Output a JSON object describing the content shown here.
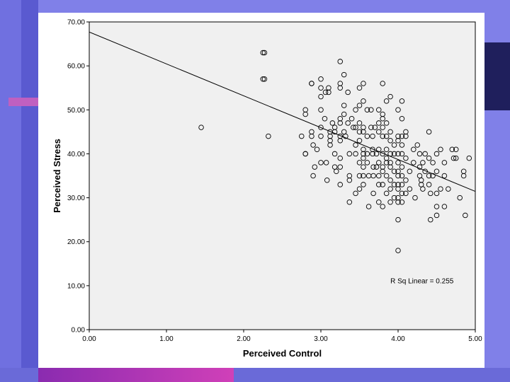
{
  "slide": {
    "colors": {
      "background": "#8080e8",
      "accent_pink": "#d040b8",
      "navy": "#1f1f5c",
      "plot_area": "#f0f0f0"
    }
  },
  "chart_data": {
    "type": "scatter",
    "title": "",
    "xlabel": "Perceived Control",
    "ylabel": "Perceived Stress",
    "xlim": [
      0,
      5
    ],
    "ylim": [
      0,
      70
    ],
    "xticks": [
      "0.00",
      "1.00",
      "2.00",
      "3.00",
      "4.00",
      "5.00"
    ],
    "yticks": [
      "0.00",
      "10.00",
      "20.00",
      "30.00",
      "40.00",
      "50.00",
      "60.00",
      "70.00"
    ],
    "grid": false,
    "marker": "open-circle",
    "fit_line": {
      "label": "R Sq Linear = 0.255",
      "intercept": 67.7,
      "slope": -7.25
    },
    "points": [
      [
        1.45,
        46
      ],
      [
        2.25,
        63
      ],
      [
        2.27,
        63
      ],
      [
        2.25,
        57
      ],
      [
        2.27,
        57
      ],
      [
        2.32,
        44
      ],
      [
        2.75,
        44
      ],
      [
        2.8,
        40
      ],
      [
        2.8,
        40
      ],
      [
        2.8,
        50
      ],
      [
        2.8,
        49
      ],
      [
        2.88,
        56
      ],
      [
        2.88,
        56
      ],
      [
        2.88,
        45
      ],
      [
        2.88,
        44
      ],
      [
        2.9,
        35
      ],
      [
        2.9,
        42
      ],
      [
        2.92,
        37
      ],
      [
        2.95,
        41
      ],
      [
        3.0,
        57
      ],
      [
        3.0,
        55
      ],
      [
        3.0,
        53
      ],
      [
        3.0,
        50
      ],
      [
        3.0,
        46
      ],
      [
        3.0,
        44
      ],
      [
        3.0,
        38
      ],
      [
        3.05,
        48
      ],
      [
        3.06,
        54
      ],
      [
        3.07,
        38
      ],
      [
        3.08,
        34
      ],
      [
        3.1,
        55
      ],
      [
        3.1,
        54
      ],
      [
        3.12,
        45
      ],
      [
        3.12,
        44
      ],
      [
        3.12,
        43
      ],
      [
        3.12,
        42
      ],
      [
        3.15,
        47
      ],
      [
        3.18,
        46
      ],
      [
        3.18,
        45
      ],
      [
        3.18,
        40
      ],
      [
        3.18,
        37
      ],
      [
        3.2,
        36
      ],
      [
        3.25,
        61
      ],
      [
        3.25,
        56
      ],
      [
        3.25,
        55
      ],
      [
        3.25,
        48
      ],
      [
        3.25,
        47
      ],
      [
        3.25,
        44
      ],
      [
        3.25,
        43
      ],
      [
        3.25,
        39
      ],
      [
        3.25,
        37
      ],
      [
        3.25,
        33
      ],
      [
        3.3,
        58
      ],
      [
        3.3,
        51
      ],
      [
        3.3,
        49
      ],
      [
        3.3,
        45
      ],
      [
        3.32,
        44
      ],
      [
        3.35,
        54
      ],
      [
        3.35,
        47
      ],
      [
        3.37,
        40
      ],
      [
        3.37,
        35
      ],
      [
        3.37,
        34
      ],
      [
        3.37,
        29
      ],
      [
        3.4,
        48
      ],
      [
        3.42,
        46
      ],
      [
        3.45,
        46
      ],
      [
        3.45,
        50
      ],
      [
        3.45,
        42
      ],
      [
        3.45,
        40
      ],
      [
        3.45,
        31
      ],
      [
        3.5,
        55
      ],
      [
        3.5,
        51
      ],
      [
        3.5,
        47
      ],
      [
        3.5,
        45
      ],
      [
        3.5,
        43
      ],
      [
        3.5,
        38
      ],
      [
        3.5,
        35
      ],
      [
        3.5,
        32
      ],
      [
        3.55,
        56
      ],
      [
        3.55,
        52
      ],
      [
        3.55,
        46
      ],
      [
        3.55,
        45
      ],
      [
        3.55,
        41
      ],
      [
        3.55,
        40
      ],
      [
        3.55,
        39
      ],
      [
        3.55,
        37
      ],
      [
        3.55,
        35
      ],
      [
        3.55,
        33
      ],
      [
        3.6,
        50
      ],
      [
        3.6,
        44
      ],
      [
        3.6,
        40
      ],
      [
        3.6,
        38
      ],
      [
        3.62,
        35
      ],
      [
        3.62,
        28
      ],
      [
        3.65,
        50
      ],
      [
        3.65,
        46
      ],
      [
        3.67,
        44
      ],
      [
        3.67,
        41
      ],
      [
        3.67,
        40
      ],
      [
        3.68,
        37
      ],
      [
        3.68,
        35
      ],
      [
        3.68,
        31
      ],
      [
        3.7,
        46
      ],
      [
        3.72,
        40
      ],
      [
        3.72,
        37
      ],
      [
        3.75,
        50
      ],
      [
        3.75,
        47
      ],
      [
        3.75,
        45
      ],
      [
        3.75,
        41
      ],
      [
        3.75,
        38
      ],
      [
        3.75,
        35
      ],
      [
        3.75,
        33
      ],
      [
        3.75,
        29
      ],
      [
        3.8,
        56
      ],
      [
        3.8,
        49
      ],
      [
        3.8,
        48
      ],
      [
        3.8,
        46
      ],
      [
        3.8,
        44
      ],
      [
        3.8,
        40
      ],
      [
        3.8,
        37
      ],
      [
        3.8,
        36
      ],
      [
        3.8,
        33
      ],
      [
        3.8,
        28
      ],
      [
        3.85,
        52
      ],
      [
        3.85,
        47
      ],
      [
        3.85,
        44
      ],
      [
        3.85,
        41
      ],
      [
        3.85,
        39
      ],
      [
        3.85,
        38
      ],
      [
        3.85,
        35
      ],
      [
        3.85,
        31
      ],
      [
        3.9,
        53
      ],
      [
        3.9,
        45
      ],
      [
        3.9,
        43
      ],
      [
        3.9,
        40
      ],
      [
        3.9,
        38
      ],
      [
        3.9,
        37
      ],
      [
        3.9,
        34
      ],
      [
        3.9,
        32
      ],
      [
        3.9,
        29
      ],
      [
        3.95,
        42
      ],
      [
        3.95,
        40
      ],
      [
        3.95,
        36
      ],
      [
        3.95,
        33
      ],
      [
        3.95,
        30
      ],
      [
        4.0,
        50
      ],
      [
        4.0,
        44
      ],
      [
        4.0,
        43
      ],
      [
        4.0,
        40
      ],
      [
        4.0,
        38
      ],
      [
        4.0,
        36
      ],
      [
        4.0,
        35
      ],
      [
        4.0,
        33
      ],
      [
        4.0,
        32
      ],
      [
        4.0,
        30
      ],
      [
        4.0,
        29
      ],
      [
        4.0,
        25
      ],
      [
        4.0,
        18
      ],
      [
        4.05,
        52
      ],
      [
        4.05,
        48
      ],
      [
        4.05,
        44
      ],
      [
        4.05,
        42
      ],
      [
        4.05,
        40
      ],
      [
        4.05,
        37
      ],
      [
        4.05,
        35
      ],
      [
        4.05,
        33
      ],
      [
        4.05,
        31
      ],
      [
        4.05,
        29
      ],
      [
        4.1,
        45
      ],
      [
        4.1,
        44
      ],
      [
        4.1,
        39
      ],
      [
        4.1,
        34
      ],
      [
        4.1,
        31
      ],
      [
        4.15,
        36
      ],
      [
        4.15,
        32
      ],
      [
        4.2,
        41
      ],
      [
        4.2,
        38
      ],
      [
        4.22,
        30
      ],
      [
        4.25,
        42
      ],
      [
        4.28,
        40
      ],
      [
        4.28,
        37
      ],
      [
        4.28,
        35
      ],
      [
        4.3,
        34
      ],
      [
        4.3,
        33
      ],
      [
        4.32,
        38
      ],
      [
        4.32,
        32
      ],
      [
        4.35,
        40
      ],
      [
        4.35,
        36
      ],
      [
        4.4,
        45
      ],
      [
        4.4,
        39
      ],
      [
        4.4,
        35
      ],
      [
        4.4,
        33
      ],
      [
        4.42,
        31
      ],
      [
        4.42,
        25
      ],
      [
        4.45,
        38
      ],
      [
        4.45,
        35
      ],
      [
        4.5,
        40
      ],
      [
        4.5,
        36
      ],
      [
        4.5,
        31
      ],
      [
        4.5,
        28
      ],
      [
        4.5,
        26
      ],
      [
        4.55,
        41
      ],
      [
        4.55,
        32
      ],
      [
        4.6,
        38
      ],
      [
        4.6,
        35
      ],
      [
        4.6,
        28
      ],
      [
        4.65,
        32
      ],
      [
        4.7,
        41
      ],
      [
        4.72,
        39
      ],
      [
        4.75,
        41
      ],
      [
        4.75,
        39
      ],
      [
        4.8,
        30
      ],
      [
        4.85,
        36
      ],
      [
        4.85,
        35
      ],
      [
        4.87,
        26
      ],
      [
        4.92,
        39
      ]
    ]
  }
}
